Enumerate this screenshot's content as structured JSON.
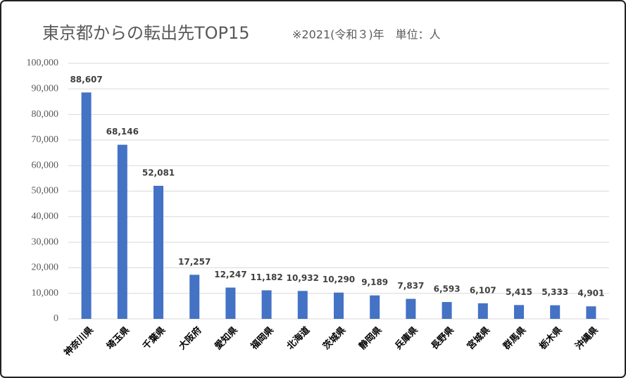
{
  "chart_data": {
    "type": "bar",
    "title": "東京都からの転出先TOP15",
    "subtitle": "※2021(令和３)年　単位：人",
    "categories": [
      "神奈川県",
      "埼玉県",
      "千葉県",
      "大阪府",
      "愛知県",
      "福岡県",
      "北海道",
      "茨城県",
      "静岡県",
      "兵庫県",
      "長野県",
      "宮城県",
      "群馬県",
      "栃木県",
      "沖縄県"
    ],
    "values": [
      88607,
      68146,
      52081,
      17257,
      12247,
      11182,
      10932,
      10290,
      9189,
      7837,
      6593,
      6107,
      5415,
      5333,
      4901
    ],
    "value_labels": [
      "88,607",
      "68,146",
      "52,081",
      "17,257",
      "12,247",
      "11,182",
      "10,932",
      "10,290",
      "9,189",
      "7,837",
      "6,593",
      "6,107",
      "5,415",
      "5,333",
      "4,901"
    ],
    "color": "#4472c4",
    "ylim": [
      0,
      100000
    ],
    "yticks": [
      0,
      {
        "value": 10000,
        "label": "10,000"
      },
      {
        "value": 20000,
        "label": "20,000"
      },
      {
        "value": 30000,
        "label": "30,000"
      },
      {
        "value": 40000,
        "label": "40,000"
      },
      {
        "value": 50000,
        "label": "50,000"
      },
      {
        "value": 60000,
        "label": "60,000"
      },
      {
        "value": 70000,
        "label": "70,000"
      },
      {
        "value": 80000,
        "label": "80,000"
      },
      {
        "value": 90000,
        "label": "90,000"
      },
      {
        "value": 100000,
        "label": "100,000"
      }
    ],
    "grid": true
  }
}
